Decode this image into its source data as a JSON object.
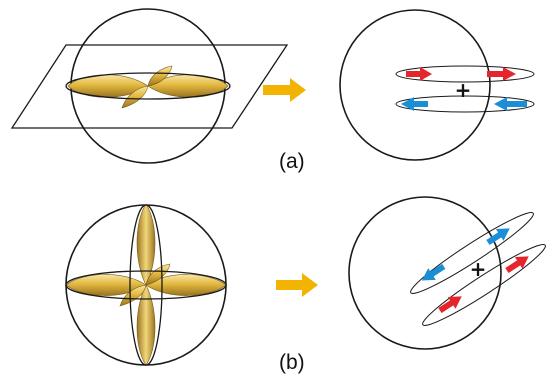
{
  "panels": [
    {
      "label": "(a)",
      "center_symbol": "+"
    },
    {
      "label": "(b)",
      "center_symbol": "+"
    }
  ],
  "colors": {
    "outline": "#1a1a1a",
    "lobe_light": "#f7e7a8",
    "lobe_mid": "#e3b93f",
    "lobe_dark": "#9a7422",
    "arrow_transition": "#f2b400",
    "arrow_red": "#e5242b",
    "arrow_blue": "#1a8fd6"
  }
}
